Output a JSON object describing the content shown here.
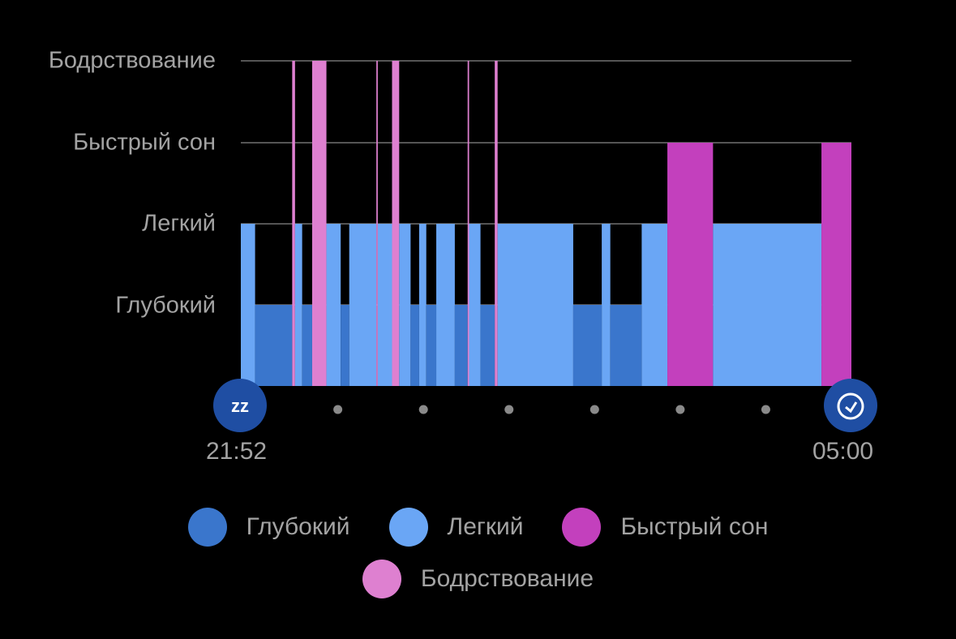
{
  "chart_data": {
    "type": "bar",
    "subtype": "sleep-stage-timeline",
    "levels": [
      "Бодрствование",
      "Быстрый сон",
      "Легкий",
      "Глубокий"
    ],
    "x_start": "21:52",
    "x_end": "05:00",
    "x_tick_marks": "hourly dots",
    "grid": true,
    "legend_placement": "bottom",
    "colors": {
      "deep": "#3a76cc",
      "light": "#6aa6f5",
      "rem": "#c340bd",
      "awake": "#de80d0"
    },
    "segments": [
      {
        "stage": "light",
        "start": "21:52",
        "end": "22:02"
      },
      {
        "stage": "deep",
        "start": "22:02",
        "end": "22:28"
      },
      {
        "stage": "awake",
        "start": "22:28",
        "end": "22:30"
      },
      {
        "stage": "light",
        "start": "22:30",
        "end": "22:35"
      },
      {
        "stage": "deep",
        "start": "22:35",
        "end": "22:42"
      },
      {
        "stage": "awake",
        "start": "22:42",
        "end": "22:52"
      },
      {
        "stage": "light",
        "start": "22:52",
        "end": "23:02"
      },
      {
        "stage": "deep",
        "start": "23:02",
        "end": "23:08"
      },
      {
        "stage": "light",
        "start": "23:08",
        "end": "23:27"
      },
      {
        "stage": "awake",
        "start": "23:27",
        "end": "23:28"
      },
      {
        "stage": "light",
        "start": "23:28",
        "end": "23:38"
      },
      {
        "stage": "awake",
        "start": "23:38",
        "end": "23:43"
      },
      {
        "stage": "light",
        "start": "23:43",
        "end": "23:51"
      },
      {
        "stage": "deep",
        "start": "23:51",
        "end": "23:57"
      },
      {
        "stage": "light",
        "start": "23:57",
        "end": "00:02"
      },
      {
        "stage": "deep",
        "start": "00:02",
        "end": "00:09"
      },
      {
        "stage": "light",
        "start": "00:09",
        "end": "00:22"
      },
      {
        "stage": "deep",
        "start": "00:22",
        "end": "00:31"
      },
      {
        "stage": "awake",
        "start": "00:31",
        "end": "00:32"
      },
      {
        "stage": "light",
        "start": "00:32",
        "end": "00:40"
      },
      {
        "stage": "deep",
        "start": "00:40",
        "end": "00:50"
      },
      {
        "stage": "awake",
        "start": "00:50",
        "end": "00:52"
      },
      {
        "stage": "light",
        "start": "00:52",
        "end": "01:45"
      },
      {
        "stage": "deep",
        "start": "01:45",
        "end": "02:05"
      },
      {
        "stage": "light",
        "start": "02:05",
        "end": "02:11"
      },
      {
        "stage": "deep",
        "start": "02:11",
        "end": "02:33"
      },
      {
        "stage": "light",
        "start": "02:33",
        "end": "02:51"
      },
      {
        "stage": "rem",
        "start": "02:51",
        "end": "03:23"
      },
      {
        "stage": "light",
        "start": "03:23",
        "end": "04:39"
      },
      {
        "stage": "rem",
        "start": "04:39",
        "end": "05:00"
      }
    ],
    "legend": [
      {
        "key": "deep",
        "label": "Глубокий"
      },
      {
        "key": "light",
        "label": "Легкий"
      },
      {
        "key": "rem",
        "label": "Быстрый сон"
      },
      {
        "key": "awake",
        "label": "Бодрствование"
      }
    ]
  },
  "icons": {
    "start": "zzz-sleep-icon",
    "end": "alarm-clock-icon"
  }
}
